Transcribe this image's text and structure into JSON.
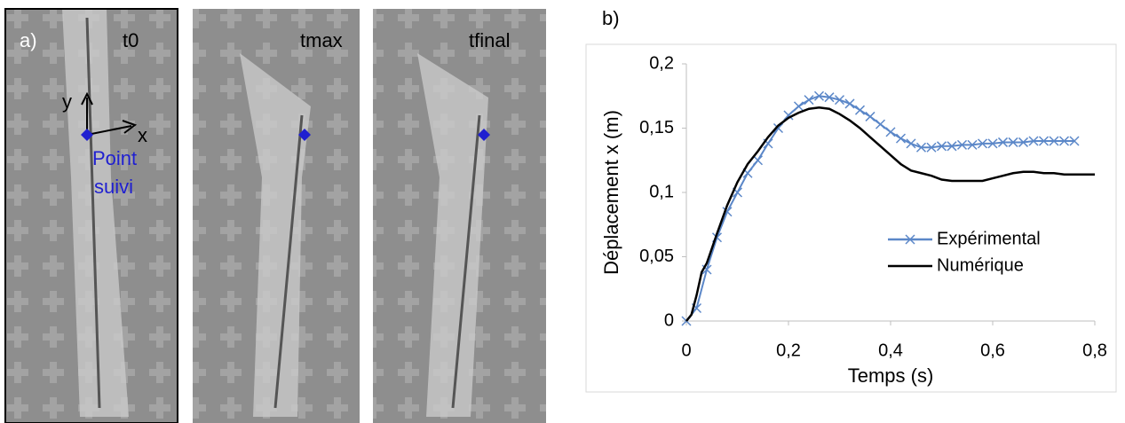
{
  "panel_a": {
    "label": "a)",
    "frames": [
      "t0",
      "tmax",
      "tfinal"
    ],
    "axis_y": "y",
    "axis_x": "x",
    "point_label": [
      "Point",
      "suivi"
    ]
  },
  "chart_data": {
    "type": "line",
    "label": "b)",
    "xlabel": "Temps (s)",
    "ylabel": "Déplacement x (m)",
    "xlim": [
      0,
      0.8
    ],
    "ylim": [
      0,
      0.2
    ],
    "xticks": [
      0,
      {
        "value": 0.2,
        "label": "0,2"
      },
      {
        "value": 0.4,
        "label": "0,4"
      },
      {
        "value": 0.6,
        "label": "0,6"
      },
      {
        "value": 0.8,
        "label": "0,8"
      }
    ],
    "yticks": [
      0,
      {
        "value": 0.05,
        "label": "0,05"
      },
      {
        "value": 0.1,
        "label": "0,1"
      },
      {
        "value": 0.15,
        "label": "0,15"
      },
      {
        "value": 0.2,
        "label": "0,2"
      }
    ],
    "legend": "right",
    "series": [
      {
        "name": "Expérimental",
        "color": "#5b87c8",
        "marker": "x",
        "x": [
          0,
          0.02,
          0.04,
          0.06,
          0.08,
          0.1,
          0.12,
          0.14,
          0.16,
          0.18,
          0.2,
          0.22,
          0.24,
          0.26,
          0.28,
          0.3,
          0.32,
          0.34,
          0.36,
          0.38,
          0.4,
          0.42,
          0.44,
          0.46,
          0.48,
          0.5,
          0.52,
          0.54,
          0.56,
          0.58,
          0.6,
          0.62,
          0.64,
          0.66,
          0.68,
          0.7,
          0.72,
          0.74,
          0.76
        ],
        "values": [
          0,
          0.01,
          0.04,
          0.065,
          0.085,
          0.1,
          0.115,
          0.125,
          0.138,
          0.15,
          0.16,
          0.167,
          0.172,
          0.175,
          0.174,
          0.172,
          0.169,
          0.164,
          0.159,
          0.153,
          0.147,
          0.142,
          0.138,
          0.135,
          0.135,
          0.136,
          0.136,
          0.137,
          0.137,
          0.138,
          0.138,
          0.139,
          0.139,
          0.139,
          0.14,
          0.14,
          0.14,
          0.14,
          0.14
        ]
      },
      {
        "name": "Numérique",
        "color": "#000000",
        "marker": "none",
        "x": [
          0,
          0.01,
          0.02,
          0.03,
          0.04,
          0.06,
          0.08,
          0.1,
          0.12,
          0.14,
          0.16,
          0.18,
          0.2,
          0.22,
          0.24,
          0.26,
          0.28,
          0.3,
          0.32,
          0.34,
          0.36,
          0.38,
          0.4,
          0.42,
          0.44,
          0.46,
          0.48,
          0.5,
          0.52,
          0.54,
          0.56,
          0.58,
          0.6,
          0.62,
          0.64,
          0.66,
          0.68,
          0.7,
          0.72,
          0.74,
          0.76,
          0.78,
          0.8
        ],
        "values": [
          0,
          0.005,
          0.02,
          0.038,
          0.045,
          0.068,
          0.09,
          0.108,
          0.122,
          0.132,
          0.143,
          0.152,
          0.158,
          0.162,
          0.165,
          0.166,
          0.165,
          0.161,
          0.156,
          0.15,
          0.143,
          0.136,
          0.129,
          0.122,
          0.117,
          0.115,
          0.113,
          0.11,
          0.109,
          0.109,
          0.109,
          0.109,
          0.111,
          0.113,
          0.115,
          0.116,
          0.116,
          0.115,
          0.115,
          0.114,
          0.114,
          0.114,
          0.114
        ]
      }
    ]
  }
}
